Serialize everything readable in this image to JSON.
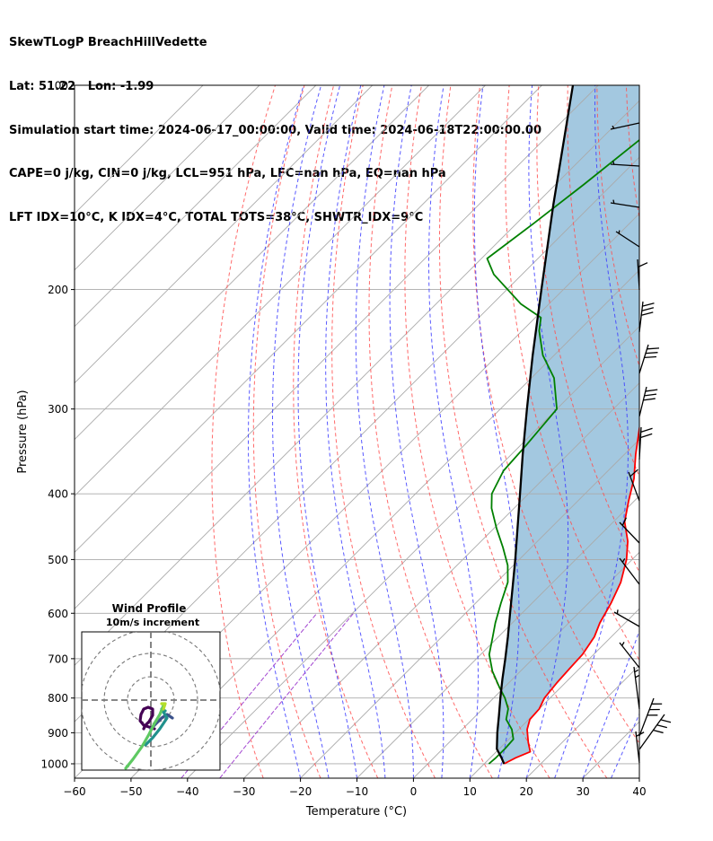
{
  "header": {
    "lines": [
      "SkewTLogP BreachHillVedette",
      "Lat: 51.22   Lon: -1.99",
      "Simulation start time: 2024-06-17_00:00:00, Valid time: 2024-06-18T22:00:00.00",
      "CAPE=0 j/kg, CIN=0 j/kg, LCL=951 hPa, LFC=nan hPa, EQ=nan hPa",
      "LFT IDX=10°C, K IDX=4°C, TOTAL TOTS=38°C, SHWTR_IDX=9°C"
    ]
  },
  "chart_data": [
    {
      "type": "line",
      "chart_kind": "skew-T log-P",
      "xlabel": "Temperature (°C)",
      "ylabel": "Pressure (hPa)",
      "xlim": [
        -60,
        40
      ],
      "ylim": [
        1050,
        100
      ],
      "yscale": "log",
      "skew": "isotherms slanted 45°",
      "x_ticks": [
        -60,
        -50,
        -40,
        -30,
        -20,
        -10,
        0,
        10,
        20,
        30,
        40
      ],
      "x_tick_labels": [
        "−60",
        "−50",
        "−40",
        "−30",
        "−20",
        "−10",
        "0",
        "10",
        "20",
        "30",
        "40"
      ],
      "y_ticks": [
        1000,
        900,
        800,
        700,
        600,
        500,
        400,
        300,
        200,
        100
      ],
      "y_tick_labels": [
        "1000",
        "900",
        "800",
        "700",
        "600",
        "500",
        "400",
        "300",
        "200",
        "100"
      ],
      "grid": true,
      "colors": {
        "temperature": "#ff0000",
        "dewpoint": "#008000",
        "parcel": "#000000",
        "shade": "#a3c8e0",
        "dry_adiabats": "#ff5050",
        "moist_adiabats": "#3c3cff",
        "mixing_ratio": "#9933cc",
        "isotherms": "#aaaaaa"
      },
      "series": [
        {
          "role": "temperature",
          "points": [
            [
              1000,
              13.5
            ],
            [
              980,
              14.5
            ],
            [
              960,
              16.0
            ],
            [
              930,
              14.0
            ],
            [
              890,
              11.5
            ],
            [
              860,
              10.2
            ],
            [
              830,
              10.0
            ],
            [
              800,
              9.0
            ],
            [
              760,
              8.5
            ],
            [
              720,
              8.2
            ],
            [
              690,
              8.0
            ],
            [
              650,
              7.0
            ],
            [
              620,
              5.5
            ],
            [
              580,
              4.0
            ],
            [
              540,
              2.0
            ],
            [
              500,
              -1.0
            ],
            [
              470,
              -4.0
            ],
            [
              440,
              -8.0
            ],
            [
              410,
              -11.0
            ],
            [
              380,
              -14.0
            ],
            [
              350,
              -18.0
            ],
            [
              320,
              -22.0
            ],
            [
              290,
              -26.0
            ],
            [
              260,
              -30.0
            ],
            [
              240,
              -34.0
            ],
            [
              225,
              -36.0
            ],
            [
              210,
              -36.5
            ],
            [
              200,
              -37.0
            ],
            [
              185,
              -39.0
            ],
            [
              170,
              -40.0
            ],
            [
              160,
              -40.5
            ],
            [
              150,
              -42.0
            ],
            [
              140,
              -44.0
            ],
            [
              130,
              -45.5
            ],
            [
              120,
              -47.5
            ],
            [
              110,
              -48.5
            ],
            [
              100,
              -50.5
            ]
          ]
        },
        {
          "role": "dewpoint",
          "points": [
            [
              1000,
              10.8
            ],
            [
              980,
              11.0
            ],
            [
              950,
              11.0
            ],
            [
              920,
              10.8
            ],
            [
              890,
              8.8
            ],
            [
              860,
              6.0
            ],
            [
              830,
              4.5
            ],
            [
              800,
              2.0
            ],
            [
              770,
              -1.0
            ],
            [
              730,
              -5.0
            ],
            [
              690,
              -8.5
            ],
            [
              650,
              -11.0
            ],
            [
              620,
              -13.0
            ],
            [
              580,
              -15.5
            ],
            [
              540,
              -18.0
            ],
            [
              510,
              -21.0
            ],
            [
              480,
              -25.0
            ],
            [
              450,
              -29.5
            ],
            [
              420,
              -34.0
            ],
            [
              400,
              -36.5
            ],
            [
              370,
              -38.5
            ],
            [
              340,
              -39.0
            ],
            [
              300,
              -40.0
            ],
            [
              270,
              -46.0
            ],
            [
              250,
              -52.0
            ],
            [
              230,
              -57.0
            ],
            [
              220,
              -59.0
            ],
            [
              210,
              -65.0
            ],
            [
              190,
              -75.0
            ],
            [
              180,
              -79.0
            ],
            [
              160,
              -77.0
            ],
            [
              140,
              -75.0
            ],
            [
              120,
              -73.0
            ],
            [
              100,
              -72.0
            ]
          ]
        },
        {
          "role": "parcel",
          "points": [
            [
              1000,
              13.5
            ],
            [
              980,
              12.0
            ],
            [
              951,
              9.6
            ],
            [
              900,
              6.8
            ],
            [
              850,
              4.1
            ],
            [
              800,
              1.2
            ],
            [
              750,
              -1.8
            ],
            [
              700,
              -4.9
            ],
            [
              650,
              -8.3
            ],
            [
              600,
              -12.1
            ],
            [
              550,
              -16.2
            ],
            [
              500,
              -20.7
            ],
            [
              450,
              -25.8
            ],
            [
              400,
              -31.5
            ],
            [
              350,
              -38.0
            ],
            [
              300,
              -45.3
            ],
            [
              250,
              -53.8
            ],
            [
              200,
              -63.9
            ],
            [
              150,
              -76.8
            ],
            [
              100,
              -94.5
            ]
          ]
        }
      ]
    },
    {
      "type": "line",
      "chart_kind": "hodograph",
      "title": "Wind Profile",
      "subtitle": "10m/s increment",
      "ring_spacing": 10,
      "ring_count": 3,
      "colormap": "viridis"
    }
  ]
}
